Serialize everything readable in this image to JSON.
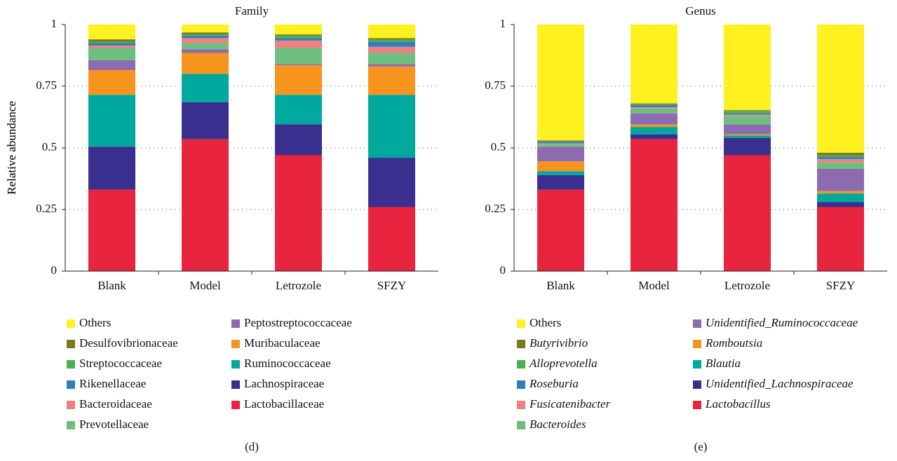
{
  "chart_data": [
    {
      "type": "stacked_bar",
      "title": "Family",
      "ylabel": "Relative abundance",
      "panel_label": "(d)",
      "categories": [
        "Blank",
        "Model",
        "Letrozole",
        "SFZY"
      ],
      "ylim": [
        0,
        1
      ],
      "yticks": [
        0,
        0.25,
        0.5,
        0.75,
        1
      ],
      "grid": true,
      "series": [
        {
          "name": "Others",
          "color": "#fff01f",
          "values": [
            0.06,
            0.032,
            0.04,
            0.055
          ]
        },
        {
          "name": "Desulfovibrionaceae",
          "color": "#7a7a1a",
          "values": [
            0.01,
            0.008,
            0.005,
            0.007
          ]
        },
        {
          "name": "Streptococcaceae",
          "color": "#4caf50",
          "values": [
            0.005,
            0.005,
            0.01,
            0.008
          ]
        },
        {
          "name": "Rikenellaceae",
          "color": "#2b7fc1",
          "values": [
            0.01,
            0.01,
            0.01,
            0.02
          ]
        },
        {
          "name": "Bacteroidaceae",
          "color": "#f08080",
          "values": [
            0.01,
            0.02,
            0.03,
            0.025
          ]
        },
        {
          "name": "Prevotellaceae",
          "color": "#6dbf80",
          "values": [
            0.05,
            0.025,
            0.065,
            0.045
          ]
        },
        {
          "name": "Peptostreptococcaceae",
          "color": "#8c6bb1",
          "values": [
            0.04,
            0.015,
            0.005,
            0.01
          ]
        },
        {
          "name": "Muribaculaceae",
          "color": "#f7941d",
          "values": [
            0.1,
            0.085,
            0.12,
            0.115
          ]
        },
        {
          "name": "Ruminococcaceae",
          "color": "#00a99d",
          "values": [
            0.21,
            0.115,
            0.12,
            0.255
          ]
        },
        {
          "name": "Lachnospiraceae",
          "color": "#3a2f8f",
          "values": [
            0.175,
            0.15,
            0.125,
            0.2
          ]
        },
        {
          "name": "Lactobacillaceae",
          "color": "#e8243f",
          "values": [
            0.33,
            0.535,
            0.47,
            0.26
          ]
        }
      ]
    },
    {
      "type": "stacked_bar",
      "title": "Genus",
      "ylabel": "Relative abundance",
      "panel_label": "(e)",
      "categories": [
        "Blank",
        "Model",
        "Letrozole",
        "SFZY"
      ],
      "ylim": [
        0,
        1
      ],
      "yticks": [
        0,
        0.25,
        0.5,
        0.75,
        1
      ],
      "grid": true,
      "series": [
        {
          "name": "Others",
          "color": "#fff01f",
          "values": [
            0.47,
            0.32,
            0.347,
            0.52
          ]
        },
        {
          "name": "Butyrivibrio",
          "color": "#7a7a1a",
          "values": [
            0.003,
            0.004,
            0.003,
            0.01
          ]
        },
        {
          "name": "Alloprevotella",
          "color": "#4caf50",
          "values": [
            0.002,
            0.003,
            0.01,
            0.007
          ]
        },
        {
          "name": "Roseburia",
          "color": "#2b7fc1",
          "values": [
            0.007,
            0.008,
            0.005,
            0.008
          ]
        },
        {
          "name": "Fusicatenibacter",
          "color": "#f08080",
          "values": [
            0.003,
            0.005,
            0.005,
            0.015
          ]
        },
        {
          "name": "Bacteroides",
          "color": "#6dbf80",
          "values": [
            0.01,
            0.02,
            0.035,
            0.025
          ]
        },
        {
          "name": "Unidentified_Ruminococcaceae",
          "color": "#8c6bb1",
          "values": [
            0.06,
            0.045,
            0.04,
            0.09
          ]
        },
        {
          "name": "Romboutsia",
          "color": "#f7941d",
          "values": [
            0.04,
            0.01,
            0.005,
            0.01
          ]
        },
        {
          "name": "Blautia",
          "color": "#00a99d",
          "values": [
            0.015,
            0.03,
            0.01,
            0.035
          ]
        },
        {
          "name": "Unidentified_Lachnospiraceae",
          "color": "#3a2f8f",
          "values": [
            0.06,
            0.02,
            0.07,
            0.02
          ]
        },
        {
          "name": "Lactobacillus",
          "color": "#e8243f",
          "values": [
            0.33,
            0.535,
            0.47,
            0.26
          ]
        }
      ]
    }
  ]
}
